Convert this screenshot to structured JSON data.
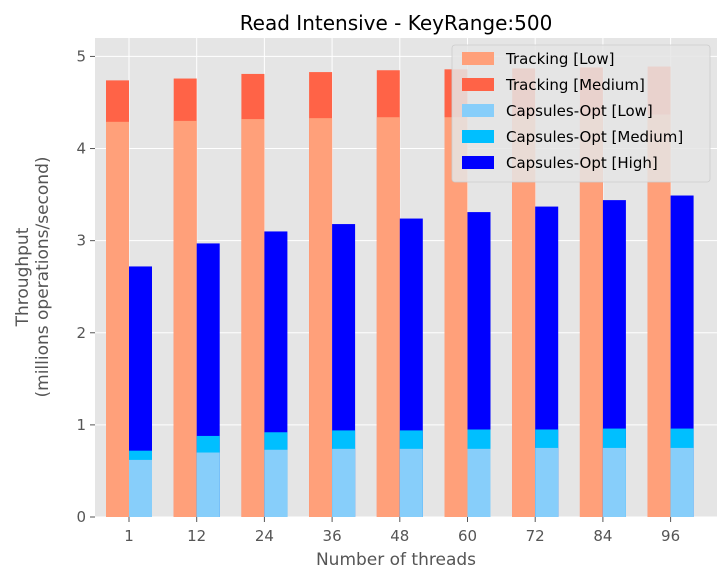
{
  "chart_data": {
    "type": "bar",
    "title": "Read Intensive - KeyRange:500",
    "xlabel": "Number of threads",
    "ylabel_line1": "Throughput",
    "ylabel_line2": "(millions operations/second)",
    "ylim": [
      0,
      5.2
    ],
    "yticks": [
      0,
      1,
      2,
      3,
      4,
      5
    ],
    "grid": true,
    "legend_position": "top-right",
    "categories": [
      "1",
      "12",
      "24",
      "36",
      "48",
      "60",
      "72",
      "84",
      "96"
    ],
    "groups": [
      {
        "name": "Tracking",
        "series": [
          {
            "name": "Tracking [Low]",
            "color": "#FFA07A",
            "values": [
              4.29,
              4.3,
              4.32,
              4.33,
              4.34,
              4.34,
              4.35,
              4.36,
              4.37
            ]
          },
          {
            "name": "Tracking [Medium]",
            "color": "#FF6347",
            "values": [
              4.74,
              4.76,
              4.81,
              4.83,
              4.85,
              4.86,
              4.87,
              4.88,
              4.89
            ]
          }
        ]
      },
      {
        "name": "Capsules-Opt",
        "series": [
          {
            "name": "Capsules-Opt [Low]",
            "color": "#87CEFA",
            "values": [
              0.62,
              0.7,
              0.73,
              0.74,
              0.74,
              0.74,
              0.75,
              0.75,
              0.75
            ]
          },
          {
            "name": "Capsules-Opt [Medium]",
            "color": "#00BFFF",
            "values": [
              0.72,
              0.88,
              0.92,
              0.94,
              0.94,
              0.95,
              0.95,
              0.96,
              0.96
            ]
          },
          {
            "name": "Capsules-Opt [High]",
            "color": "#0000FF",
            "values": [
              2.72,
              2.97,
              3.1,
              3.18,
              3.24,
              3.31,
              3.37,
              3.44,
              3.49
            ]
          }
        ]
      }
    ]
  }
}
